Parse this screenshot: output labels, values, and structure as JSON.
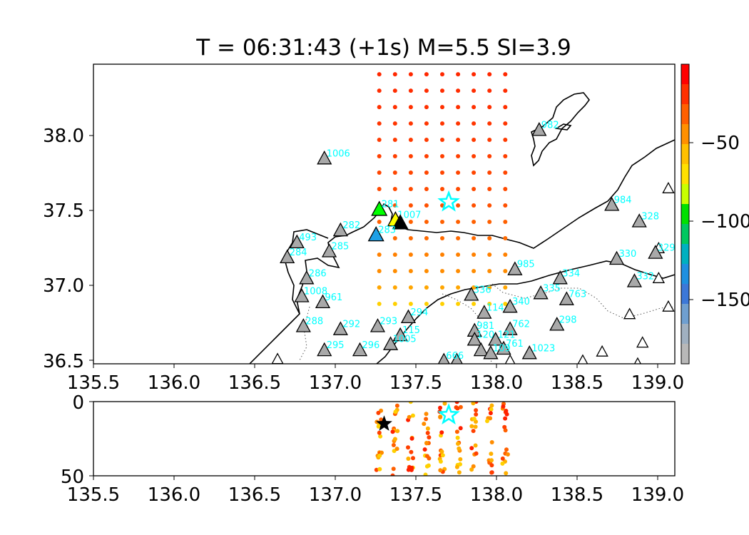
{
  "chart_data": [
    {
      "type": "scatter",
      "title": "T = 06:31:43 (+1s) M=5.5 SI=3.9",
      "xlim": [
        135.5,
        139.1
      ],
      "ylim": [
        36.48,
        38.48
      ],
      "xticks": [
        "135.5",
        "136.0",
        "136.5",
        "137.0",
        "137.5",
        "138.0",
        "138.5",
        "139.0"
      ],
      "yticks": [
        "36.5",
        "37.0",
        "37.5",
        "38.0"
      ],
      "colorbar": {
        "range": [
          -190,
          0
        ],
        "ticks": [
          "−50",
          "−100",
          "−150"
        ],
        "tick_values": [
          -50,
          -100,
          -150
        ]
      },
      "grid_points": {
        "lon_start": 137.27,
        "lon_step": 0.0975,
        "lon_count": 9,
        "lat_start": 36.88,
        "lat_step": 0.1095,
        "lat_count": 15,
        "color_by_row": [
          "#ffd000",
          "#ffa500",
          "#ff8c00",
          "#ff8000",
          "#ff6a00",
          "#ff6000",
          "#ff5000",
          "#ff4a00",
          "#ff4500",
          "#ff3f00",
          "#ff3a00",
          "#ff3500",
          "#ff3000",
          "#ff2c00",
          "#ff2800"
        ]
      },
      "hypocenter_star": {
        "lon": 137.7,
        "lat": 37.56,
        "color": "#00ffff"
      },
      "triggered_stations": [
        {
          "lon": 137.27,
          "lat": 37.51,
          "color": "#00ff00",
          "label": "281"
        },
        {
          "lon": 137.37,
          "lat": 37.44,
          "color": "#ffff00",
          "label": "1007"
        },
        {
          "lon": 137.4,
          "lat": 37.42,
          "color": "#000000",
          "label": ""
        },
        {
          "lon": 137.25,
          "lat": 37.34,
          "color": "#1ea0e6",
          "label": "283"
        }
      ],
      "stations": [
        {
          "lon": 136.93,
          "lat": 37.85,
          "label": "1006"
        },
        {
          "lon": 138.26,
          "lat": 38.04,
          "label": "982"
        },
        {
          "lon": 138.71,
          "lat": 37.54,
          "label": "984"
        },
        {
          "lon": 138.88,
          "lat": 37.43,
          "label": "328"
        },
        {
          "lon": 137.03,
          "lat": 37.37,
          "label": "282"
        },
        {
          "lon": 136.76,
          "lat": 37.29,
          "label": "493"
        },
        {
          "lon": 136.96,
          "lat": 37.23,
          "label": "285"
        },
        {
          "lon": 136.7,
          "lat": 37.19,
          "label": "284"
        },
        {
          "lon": 138.74,
          "lat": 37.18,
          "label": "330"
        },
        {
          "lon": 138.98,
          "lat": 37.22,
          "label": "329"
        },
        {
          "lon": 138.11,
          "lat": 37.11,
          "label": "985"
        },
        {
          "lon": 138.39,
          "lat": 37.05,
          "label": "334"
        },
        {
          "lon": 136.82,
          "lat": 37.05,
          "label": "286"
        },
        {
          "lon": 138.85,
          "lat": 37.03,
          "label": "332"
        },
        {
          "lon": 138.27,
          "lat": 36.95,
          "label": "335"
        },
        {
          "lon": 138.43,
          "lat": 36.91,
          "label": "763"
        },
        {
          "lon": 137.84,
          "lat": 36.94,
          "label": "336"
        },
        {
          "lon": 136.79,
          "lat": 36.93,
          "label": "1008"
        },
        {
          "lon": 136.92,
          "lat": 36.89,
          "label": "961"
        },
        {
          "lon": 138.08,
          "lat": 36.86,
          "label": "340"
        },
        {
          "lon": 137.92,
          "lat": 36.82,
          "label": "114"
        },
        {
          "lon": 137.45,
          "lat": 36.79,
          "label": "294"
        },
        {
          "lon": 136.8,
          "lat": 36.73,
          "label": "288"
        },
        {
          "lon": 137.03,
          "lat": 36.71,
          "label": "292"
        },
        {
          "lon": 137.26,
          "lat": 36.73,
          "label": "293"
        },
        {
          "lon": 138.08,
          "lat": 36.71,
          "label": "762"
        },
        {
          "lon": 138.37,
          "lat": 36.74,
          "label": "298"
        },
        {
          "lon": 137.86,
          "lat": 36.7,
          "label": "981"
        },
        {
          "lon": 137.4,
          "lat": 36.67,
          "label": "115"
        },
        {
          "lon": 137.86,
          "lat": 36.64,
          "label": "120"
        },
        {
          "lon": 137.99,
          "lat": 36.64,
          "label": "121"
        },
        {
          "lon": 137.34,
          "lat": 36.61,
          "label": "1005"
        },
        {
          "lon": 138.04,
          "lat": 36.58,
          "label": "761"
        },
        {
          "lon": 137.9,
          "lat": 36.57,
          "label": ""
        },
        {
          "lon": 136.93,
          "lat": 36.57,
          "label": "295"
        },
        {
          "lon": 137.15,
          "lat": 36.57,
          "label": "296"
        },
        {
          "lon": 137.96,
          "lat": 36.55,
          "label": "109"
        },
        {
          "lon": 138.2,
          "lat": 36.55,
          "label": "1023"
        },
        {
          "lon": 137.75,
          "lat": 36.5,
          "label": ""
        },
        {
          "lon": 137.67,
          "lat": 36.5,
          "label": "666"
        }
      ],
      "inactive_stations": [
        {
          "lon": 139.06,
          "lat": 37.65
        },
        {
          "lon": 139.0,
          "lat": 37.25
        },
        {
          "lon": 139.0,
          "lat": 37.05
        },
        {
          "lon": 139.06,
          "lat": 36.86
        },
        {
          "lon": 138.82,
          "lat": 36.81
        },
        {
          "lon": 138.9,
          "lat": 36.62
        },
        {
          "lon": 138.65,
          "lat": 36.56
        },
        {
          "lon": 138.53,
          "lat": 36.5
        },
        {
          "lon": 136.64,
          "lat": 36.51
        },
        {
          "lon": 138.87,
          "lat": 36.48
        },
        {
          "lon": 138.08,
          "lat": 36.5
        }
      ]
    },
    {
      "type": "scatter",
      "xlim": [
        135.5,
        139.1
      ],
      "ylim": [
        50,
        0
      ],
      "xticks": [
        "135.5",
        "136.0",
        "136.5",
        "137.0",
        "137.5",
        "138.0",
        "138.5",
        "139.0"
      ],
      "yticks": [
        "0",
        "50"
      ],
      "hypocenter_star": {
        "lon": 137.7,
        "depth": 9,
        "color": "#00ffff"
      },
      "epicenter_star": {
        "lon": 137.3,
        "depth": 15,
        "color": "#000000"
      },
      "depth_points": {
        "lon_start": 137.27,
        "lon_step": 0.0975,
        "lon_count": 9,
        "depth_max": 50,
        "colors": [
          "#ff2000",
          "#ff4000",
          "#ff6000",
          "#ff8c00",
          "#ffb000",
          "#ffd000"
        ]
      }
    }
  ]
}
